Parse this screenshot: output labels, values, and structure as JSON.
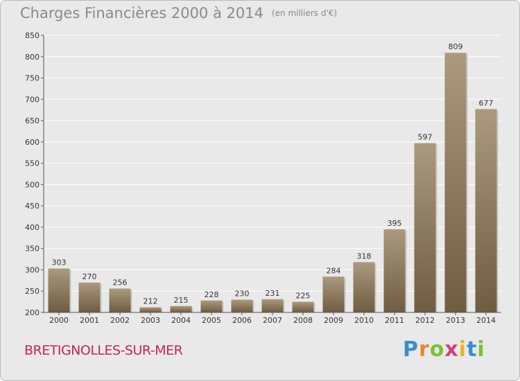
{
  "title": "Charges Financières 2000 à 2014",
  "unit": "(en milliers d'€)",
  "commune": "BRETIGNOLLES-SUR-MER",
  "brand": {
    "letters": [
      "P",
      "r",
      "o",
      "x",
      "i",
      "t",
      "i"
    ],
    "colors": [
      "#3a8dd0",
      "#e8872a",
      "#7cbf3a",
      "#d23f7e",
      "#e8b32a",
      "#3a8dd0",
      "#7cbf3a"
    ]
  },
  "colors": {
    "bar_top": "#ab9a7d",
    "bar_bottom": "#6f5c41",
    "grid": "#ffffff",
    "plot_bg": "#e9e9e9"
  },
  "chart_data": {
    "type": "bar",
    "categories": [
      "2000",
      "2001",
      "2002",
      "2003",
      "2004",
      "2005",
      "2006",
      "2007",
      "2008",
      "2009",
      "2010",
      "2011",
      "2012",
      "2013",
      "2014"
    ],
    "values": [
      303,
      270,
      256,
      212,
      215,
      228,
      230,
      231,
      225,
      284,
      318,
      395,
      597,
      809,
      677
    ],
    "ylim": [
      200,
      850
    ],
    "yticks": [
      200,
      250,
      300,
      350,
      400,
      450,
      500,
      550,
      600,
      650,
      700,
      750,
      800,
      850
    ],
    "grid": true
  }
}
